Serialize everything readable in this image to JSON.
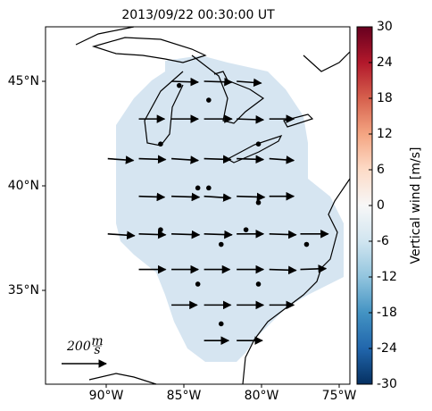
{
  "map": {
    "title": "2013/09/22 00:30:00 UT",
    "lat_ticks": [
      {
        "value": 45,
        "label": "45°N"
      },
      {
        "value": 40,
        "label": "40°N"
      },
      {
        "value": 35,
        "label": "35°N"
      }
    ],
    "lon_ticks": [
      {
        "value": -90,
        "label": "90°W"
      },
      {
        "value": -85,
        "label": "85°W"
      },
      {
        "value": -80,
        "label": "80°W"
      },
      {
        "value": -75,
        "label": "75°W"
      }
    ],
    "wind_vectors": [
      {
        "lon": -85.8,
        "lat": 45.0,
        "u": 120,
        "v": -4
      },
      {
        "lon": -83.7,
        "lat": 45.0,
        "u": 125,
        "v": -4
      },
      {
        "lon": -81.6,
        "lat": 45.0,
        "u": 110,
        "v": -8
      },
      {
        "lon": -87.9,
        "lat": 43.2,
        "u": 115,
        "v": 0
      },
      {
        "lon": -85.8,
        "lat": 43.2,
        "u": 120,
        "v": 0
      },
      {
        "lon": -83.7,
        "lat": 43.2,
        "u": 125,
        "v": 0
      },
      {
        "lon": -81.6,
        "lat": 43.2,
        "u": 120,
        "v": -4
      },
      {
        "lon": -79.5,
        "lat": 43.2,
        "u": 110,
        "v": 0
      },
      {
        "lon": -89.9,
        "lat": 41.3,
        "u": 115,
        "v": -8
      },
      {
        "lon": -87.9,
        "lat": 41.3,
        "u": 120,
        "v": -4
      },
      {
        "lon": -85.8,
        "lat": 41.3,
        "u": 120,
        "v": -8
      },
      {
        "lon": -83.7,
        "lat": 41.3,
        "u": 120,
        "v": -4
      },
      {
        "lon": -81.6,
        "lat": 41.3,
        "u": 120,
        "v": -4
      },
      {
        "lon": -79.5,
        "lat": 41.3,
        "u": 110,
        "v": -8
      },
      {
        "lon": -87.9,
        "lat": 39.5,
        "u": 115,
        "v": -4
      },
      {
        "lon": -85.8,
        "lat": 39.5,
        "u": 125,
        "v": -4
      },
      {
        "lon": -83.7,
        "lat": 39.5,
        "u": 120,
        "v": -8
      },
      {
        "lon": -81.6,
        "lat": 39.5,
        "u": 125,
        "v": -4
      },
      {
        "lon": -79.5,
        "lat": 39.5,
        "u": 110,
        "v": 0
      },
      {
        "lon": -89.9,
        "lat": 37.7,
        "u": 120,
        "v": -8
      },
      {
        "lon": -87.9,
        "lat": 37.7,
        "u": 120,
        "v": -4
      },
      {
        "lon": -85.8,
        "lat": 37.7,
        "u": 125,
        "v": -4
      },
      {
        "lon": -83.7,
        "lat": 37.7,
        "u": 125,
        "v": -4
      },
      {
        "lon": -81.6,
        "lat": 37.7,
        "u": 120,
        "v": 0
      },
      {
        "lon": -79.5,
        "lat": 37.7,
        "u": 120,
        "v": -4
      },
      {
        "lon": -77.5,
        "lat": 37.7,
        "u": 125,
        "v": 0
      },
      {
        "lon": -87.9,
        "lat": 36.0,
        "u": 120,
        "v": 0
      },
      {
        "lon": -85.8,
        "lat": 36.0,
        "u": 120,
        "v": 0
      },
      {
        "lon": -83.7,
        "lat": 36.0,
        "u": 115,
        "v": 0
      },
      {
        "lon": -81.6,
        "lat": 36.0,
        "u": 120,
        "v": 0
      },
      {
        "lon": -79.5,
        "lat": 36.0,
        "u": 120,
        "v": -4
      },
      {
        "lon": -77.5,
        "lat": 36.0,
        "u": 115,
        "v": 4
      },
      {
        "lon": -85.8,
        "lat": 34.3,
        "u": 115,
        "v": 0
      },
      {
        "lon": -83.7,
        "lat": 34.3,
        "u": 120,
        "v": 0
      },
      {
        "lon": -81.6,
        "lat": 34.3,
        "u": 120,
        "v": 0
      },
      {
        "lon": -79.5,
        "lat": 34.3,
        "u": 110,
        "v": 0
      },
      {
        "lon": -83.7,
        "lat": 32.6,
        "u": 110,
        "v": 0
      },
      {
        "lon": -81.6,
        "lat": 32.6,
        "u": 115,
        "v": 0
      }
    ],
    "stations": [
      {
        "lon": -85.3,
        "lat": 44.8
      },
      {
        "lon": -83.4,
        "lat": 44.1
      },
      {
        "lon": -86.5,
        "lat": 42.0
      },
      {
        "lon": -80.2,
        "lat": 42.0
      },
      {
        "lon": -84.1,
        "lat": 39.9
      },
      {
        "lon": -83.4,
        "lat": 39.9
      },
      {
        "lon": -80.2,
        "lat": 39.2
      },
      {
        "lon": -86.5,
        "lat": 37.9
      },
      {
        "lon": -81.0,
        "lat": 37.9
      },
      {
        "lon": -82.6,
        "lat": 37.2
      },
      {
        "lon": -77.1,
        "lat": 37.2
      },
      {
        "lon": -84.1,
        "lat": 35.3
      },
      {
        "lon": -80.2,
        "lat": 35.3
      },
      {
        "lon": -82.6,
        "lat": 33.4
      }
    ],
    "reference": {
      "speed": 200,
      "unit_num": "m",
      "unit_den": "s"
    },
    "colorbar": {
      "label": "Vertical wind [m/s]",
      "lim": [
        -30,
        30
      ],
      "ticks": [
        30,
        24,
        18,
        12,
        6,
        0,
        -6,
        -12,
        -18,
        -24,
        -30
      ],
      "colormap": [
        "#053061",
        "#2166ac",
        "#4393c3",
        "#92c5de",
        "#d1e5f0",
        "#f7f7f7",
        "#fddbc7",
        "#f4a582",
        "#d6604d",
        "#b2182b",
        "#67001f"
      ]
    }
  }
}
